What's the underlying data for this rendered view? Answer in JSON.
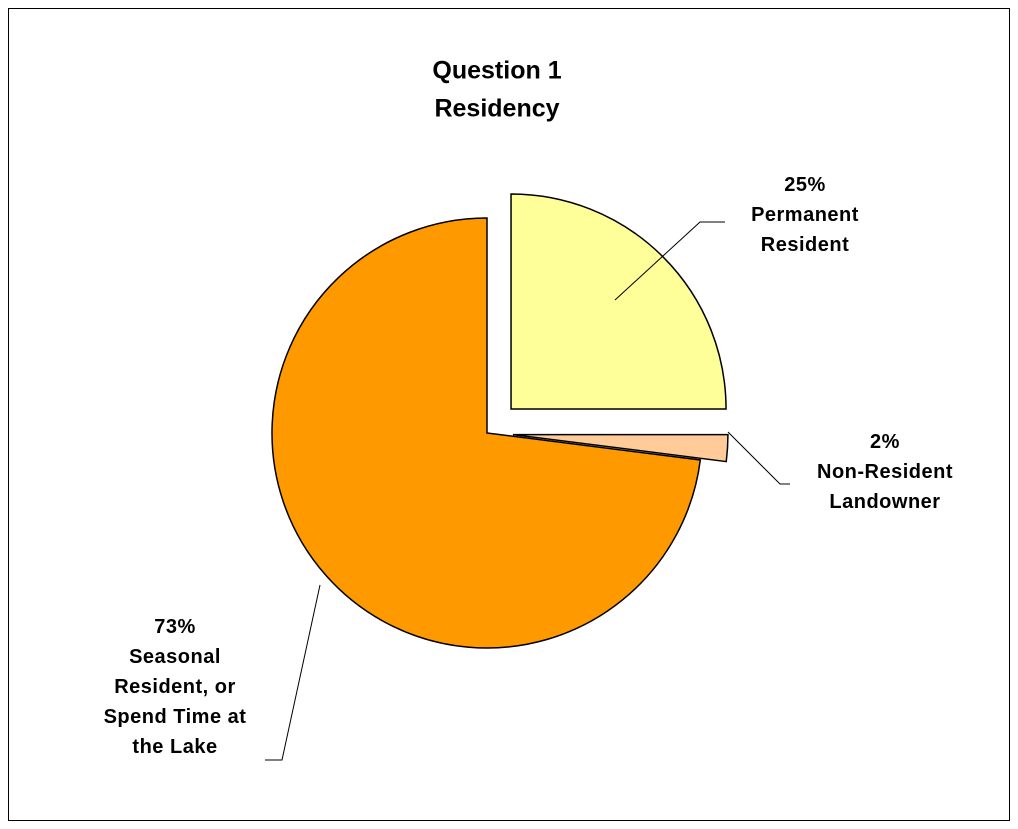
{
  "chart_data": {
    "type": "pie",
    "title": "Question 1",
    "subtitle": "Residency",
    "categories": [
      "Permanent Resident",
      "Non-Resident Landowner",
      "Seasonal Resident, or Spend Time at the Lake"
    ],
    "values": [
      25,
      2,
      73
    ],
    "value_labels": [
      "25%",
      "2%",
      "73%"
    ],
    "colors": [
      "#ffff99",
      "#ffcc99",
      "#ff9900"
    ]
  }
}
